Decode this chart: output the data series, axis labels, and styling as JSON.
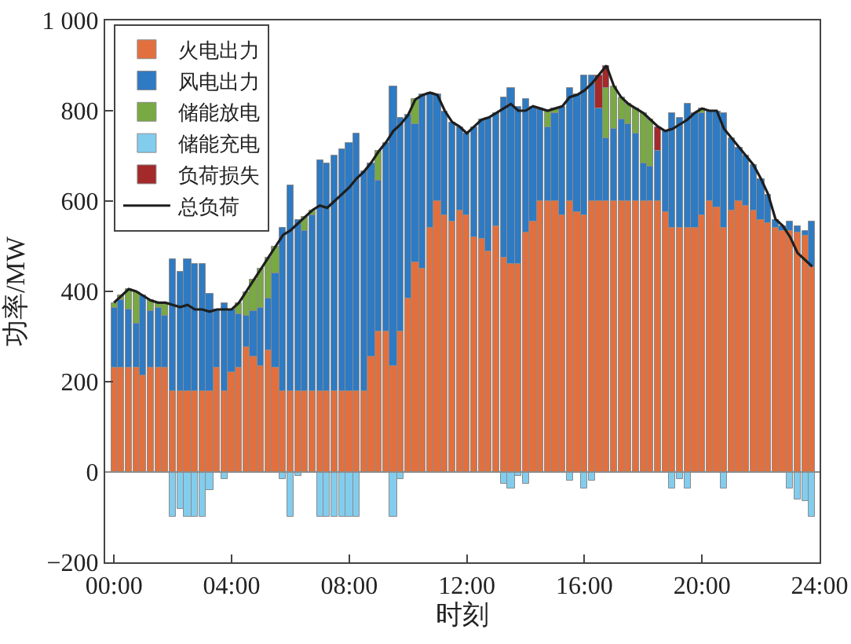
{
  "chart_data": {
    "type": "bar",
    "stacked": true,
    "xlabel": "时刻",
    "ylabel": "功率/MW",
    "x": [
      0,
      0.25,
      0.5,
      0.75,
      1,
      1.25,
      1.5,
      1.75,
      2,
      2.25,
      2.5,
      2.75,
      3,
      3.25,
      3.5,
      3.75,
      4,
      4.25,
      4.5,
      4.75,
      5,
      5.25,
      5.5,
      5.75,
      6,
      6.25,
      6.5,
      6.75,
      7,
      7.25,
      7.5,
      7.75,
      8,
      8.25,
      8.5,
      8.75,
      9,
      9.25,
      9.5,
      9.75,
      10,
      10.25,
      10.5,
      10.75,
      11,
      11.25,
      11.5,
      11.75,
      12,
      12.25,
      12.5,
      12.75,
      13,
      13.25,
      13.5,
      13.75,
      14,
      14.25,
      14.5,
      14.75,
      15,
      15.25,
      15.5,
      15.75,
      16,
      16.25,
      16.5,
      16.75,
      17,
      17.25,
      17.5,
      17.75,
      18,
      18.25,
      18.5,
      18.75,
      19,
      19.25,
      19.5,
      19.75,
      20,
      20.25,
      20.5,
      20.75,
      21,
      21.25,
      21.5,
      21.75,
      22,
      22.25,
      22.5,
      22.75,
      23,
      23.25,
      23.5,
      23.75
    ],
    "xlim": [
      -0.3,
      24
    ],
    "xticks": [
      {
        "value": 0,
        "label": "00:00"
      },
      {
        "value": 4,
        "label": "04:00"
      },
      {
        "value": 8,
        "label": "08:00"
      },
      {
        "value": 12,
        "label": "12:00"
      },
      {
        "value": 16,
        "label": "16:00"
      },
      {
        "value": 20,
        "label": "20:00"
      },
      {
        "value": 24,
        "label": "24:00"
      }
    ],
    "ylim": [
      -200,
      1000
    ],
    "yticks": [
      {
        "value": -200,
        "label": "−200"
      },
      0,
      200,
      400,
      600,
      800,
      {
        "value": 1000,
        "label": "1 000"
      }
    ],
    "grid": false,
    "legend": "top left",
    "ref_lines": [
      {
        "axis": "y",
        "value": 0,
        "color": "#8c8c8c"
      }
    ],
    "series": [
      {
        "name": "火电出力",
        "color": "#e2703e",
        "values": [
          230,
          230,
          230,
          230,
          215,
          230,
          230,
          230,
          180,
          180,
          180,
          180,
          180,
          180,
          230,
          180,
          220,
          230,
          275,
          255,
          235,
          270,
          230,
          180,
          180,
          180,
          180,
          180,
          180,
          180,
          180,
          180,
          180,
          180,
          180,
          255,
          310,
          310,
          235,
          310,
          385,
          465,
          450,
          540,
          600,
          570,
          555,
          580,
          570,
          520,
          515,
          490,
          545,
          475,
          460,
          460,
          530,
          555,
          600,
          600,
          600,
          570,
          600,
          575,
          570,
          600,
          600,
          600,
          600,
          600,
          600,
          600,
          600,
          600,
          600,
          575,
          540,
          540,
          540,
          540,
          570,
          600,
          585,
          540,
          580,
          600,
          590,
          580,
          560,
          550,
          540,
          535,
          535,
          530,
          525,
          455
        ]
      },
      {
        "name": "风电出力",
        "color": "#2e7ac3",
        "values": [
          135,
          150,
          130,
          100,
          175,
          125,
          135,
          115,
          290,
          265,
          290,
          280,
          280,
          215,
          130,
          195,
          140,
          120,
          70,
          100,
          130,
          115,
          210,
          360,
          455,
          380,
          355,
          390,
          510,
          505,
          520,
          535,
          550,
          570,
          485,
          430,
          335,
          420,
          620,
          475,
          405,
          305,
          385,
          300,
          235,
          230,
          220,
          185,
          180,
          245,
          265,
          295,
          250,
          355,
          390,
          350,
          295,
          255,
          205,
          165,
          195,
          240,
          250,
          260,
          310,
          280,
          205,
          140,
          160,
          180,
          170,
          150,
          85,
          75,
          110,
          180,
          255,
          245,
          275,
          255,
          225,
          200,
          215,
          255,
          160,
          120,
          110,
          100,
          90,
          65,
          20,
          10,
          20,
          15,
          10,
          100
        ]
      },
      {
        "name": "储能放电",
        "color": "#78a942",
        "values": [
          10,
          10,
          45,
          70,
          null,
          25,
          10,
          30,
          null,
          null,
          null,
          null,
          null,
          null,
          null,
          null,
          null,
          25,
          55,
          70,
          85,
          90,
          60,
          null,
          null,
          null,
          30,
          10,
          null,
          null,
          null,
          null,
          null,
          null,
          null,
          null,
          65,
          null,
          null,
          null,
          null,
          55,
          null,
          null,
          null,
          null,
          null,
          null,
          null,
          null,
          null,
          null,
          null,
          null,
          null,
          null,
          null,
          null,
          null,
          35,
          10,
          null,
          null,
          null,
          null,
          null,
          null,
          110,
          95,
          50,
          45,
          55,
          110,
          105,
          null,
          null,
          null,
          null,
          null,
          null,
          10,
          null,
          null,
          null,
          null,
          null,
          null,
          null,
          null,
          null,
          null,
          null,
          null,
          null,
          null,
          null
        ]
      },
      {
        "name": "储能充电",
        "color": "#82cdee",
        "values": [
          null,
          null,
          null,
          null,
          null,
          null,
          null,
          null,
          -100,
          -80,
          -100,
          -100,
          -100,
          -40,
          null,
          -15,
          null,
          null,
          null,
          null,
          null,
          null,
          null,
          -15,
          -100,
          -10,
          null,
          null,
          -100,
          -100,
          -100,
          -100,
          -100,
          -100,
          null,
          null,
          null,
          null,
          -100,
          -15,
          null,
          null,
          null,
          null,
          null,
          null,
          null,
          null,
          null,
          null,
          null,
          null,
          null,
          -25,
          -35,
          -10,
          -25,
          null,
          null,
          null,
          null,
          null,
          -20,
          null,
          -35,
          -20,
          null,
          null,
          null,
          null,
          null,
          null,
          null,
          null,
          null,
          null,
          -35,
          -15,
          -35,
          null,
          null,
          null,
          null,
          -35,
          null,
          null,
          null,
          null,
          null,
          null,
          null,
          null,
          -35,
          -60,
          -65,
          -100
        ]
      },
      {
        "name": "负荷损失",
        "color": "#a3292b",
        "values": [
          null,
          null,
          null,
          null,
          null,
          null,
          null,
          null,
          null,
          null,
          null,
          null,
          null,
          null,
          null,
          null,
          null,
          null,
          null,
          null,
          null,
          null,
          null,
          null,
          null,
          null,
          null,
          null,
          null,
          null,
          null,
          null,
          null,
          null,
          null,
          null,
          null,
          null,
          null,
          null,
          null,
          null,
          null,
          null,
          null,
          null,
          null,
          null,
          null,
          null,
          null,
          null,
          null,
          null,
          null,
          null,
          null,
          null,
          null,
          null,
          null,
          null,
          null,
          null,
          null,
          null,
          75,
          50,
          null,
          null,
          null,
          null,
          null,
          null,
          55,
          null,
          null,
          null,
          null,
          null,
          null,
          null,
          null,
          null,
          null,
          null,
          null,
          null,
          null,
          null,
          null,
          null,
          null,
          null,
          null,
          null
        ]
      },
      {
        "name": "总负荷",
        "type": "line",
        "line_style": "solid",
        "color": "#1e1e1e",
        "values": [
          375,
          390,
          405,
          400,
          390,
          380,
          375,
          375,
          370,
          365,
          370,
          360,
          360,
          355,
          360,
          360,
          360,
          375,
          400,
          425,
          450,
          475,
          500,
          525,
          535,
          550,
          565,
          580,
          590,
          585,
          600,
          615,
          630,
          650,
          665,
          685,
          710,
          730,
          755,
          770,
          790,
          825,
          835,
          840,
          835,
          800,
          775,
          765,
          750,
          765,
          780,
          785,
          795,
          805,
          815,
          800,
          800,
          810,
          805,
          800,
          805,
          810,
          830,
          835,
          845,
          860,
          880,
          900,
          855,
          830,
          815,
          805,
          795,
          780,
          765,
          755,
          760,
          770,
          780,
          795,
          805,
          800,
          800,
          760,
          740,
          720,
          700,
          680,
          650,
          615,
          560,
          545,
          520,
          485,
          470,
          455
        ]
      }
    ]
  }
}
